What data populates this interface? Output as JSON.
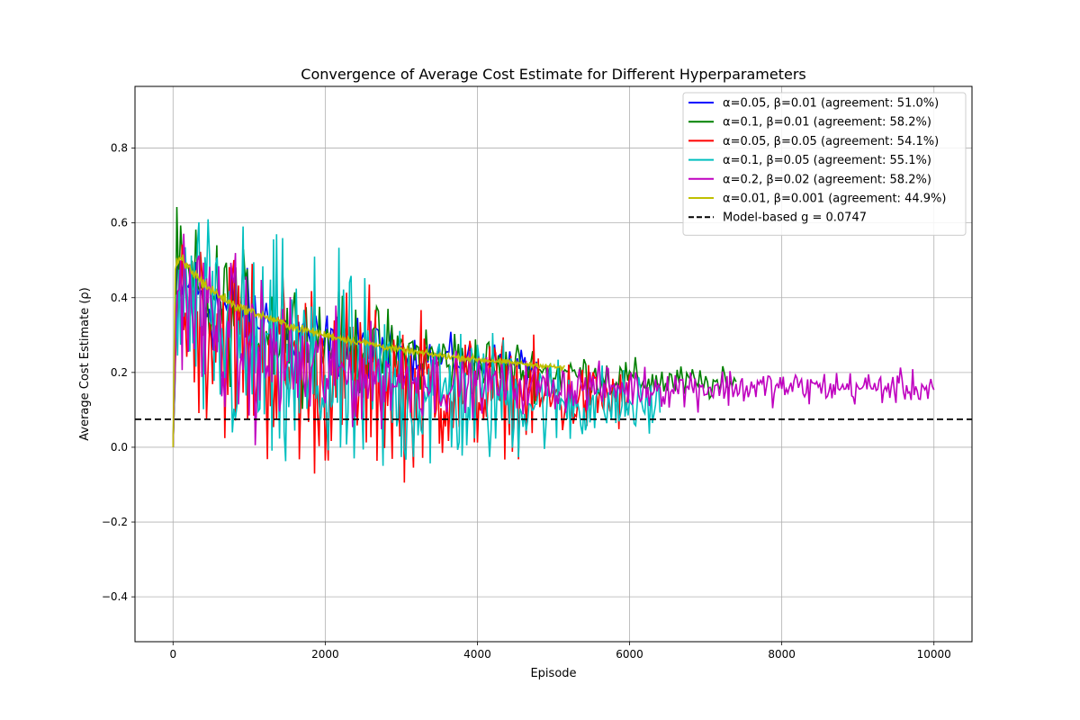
{
  "chart_data": {
    "type": "line",
    "title": "Convergence of Average Cost Estimate for Different Hyperparameters",
    "xlabel": "Episode",
    "ylabel": "Average Cost Estimate (ρ)",
    "xlim": [
      -500,
      10500
    ],
    "ylim": [
      -0.52,
      0.965
    ],
    "xticks": [
      0,
      2000,
      4000,
      6000,
      8000,
      10000
    ],
    "xtick_labels": [
      "0",
      "2000",
      "4000",
      "6000",
      "8000",
      "10000"
    ],
    "yticks": [
      -0.4,
      -0.2,
      0.0,
      0.2,
      0.4,
      0.6,
      0.8
    ],
    "ytick_labels": [
      "−0.4",
      "−0.2",
      "0.0",
      "0.2",
      "0.4",
      "0.6",
      "0.8"
    ],
    "grid": true,
    "legend_position": "upper right",
    "series": [
      {
        "name": "α=0.05, β=0.01 (agreement: 51.0%)",
        "color": "#0000ff",
        "x": [
          0,
          50,
          200,
          500,
          800,
          1200,
          1600,
          2000,
          2500,
          3000,
          3500,
          4000,
          4400,
          4800
        ],
        "y": [
          0.0,
          0.45,
          0.42,
          0.38,
          0.36,
          0.33,
          0.3,
          0.28,
          0.26,
          0.25,
          0.24,
          0.23,
          0.22,
          0.21
        ],
        "noise": [
          0,
          0.1,
          0.12,
          0.12,
          0.12,
          0.1,
          0.09,
          0.08,
          0.07,
          0.06,
          0.05,
          0.05,
          0.05,
          0.04
        ],
        "step": 25
      },
      {
        "name": "α=0.1, β=0.01 (agreement: 58.2%)",
        "color": "#008000",
        "x": [
          0,
          50,
          200,
          500,
          1000,
          2000,
          3000,
          4000,
          5000,
          6000,
          7000,
          7400
        ],
        "y": [
          0.0,
          0.45,
          0.42,
          0.38,
          0.34,
          0.28,
          0.25,
          0.22,
          0.2,
          0.18,
          0.17,
          0.16
        ],
        "noise": [
          0,
          0.15,
          0.16,
          0.16,
          0.15,
          0.12,
          0.1,
          0.08,
          0.06,
          0.05,
          0.04,
          0.04
        ],
        "step": 25
      },
      {
        "name": "α=0.05, β=0.05 (agreement: 54.1%)",
        "color": "#ff0000",
        "x": [
          0,
          50,
          200,
          500,
          1000,
          1500,
          2000,
          2500,
          3000,
          3500,
          4000,
          4500,
          5000,
          5500,
          6000
        ],
        "y": [
          0.0,
          0.42,
          0.38,
          0.32,
          0.26,
          0.22,
          0.2,
          0.18,
          0.16,
          0.15,
          0.15,
          0.14,
          0.13,
          0.13,
          0.13
        ],
        "noise": [
          0,
          0.18,
          0.22,
          0.24,
          0.25,
          0.25,
          0.24,
          0.22,
          0.2,
          0.17,
          0.15,
          0.13,
          0.11,
          0.09,
          0.08
        ],
        "step": 20
      },
      {
        "name": "α=0.1, β=0.05 (agreement: 55.1%)",
        "color": "#00bfbf",
        "x": [
          0,
          50,
          200,
          500,
          1000,
          1500,
          2000,
          2500,
          3000,
          3500,
          4000,
          4500,
          5000,
          5500,
          6000,
          6400
        ],
        "y": [
          0.0,
          0.4,
          0.36,
          0.3,
          0.24,
          0.2,
          0.18,
          0.16,
          0.15,
          0.14,
          0.13,
          0.13,
          0.12,
          0.12,
          0.11,
          0.11
        ],
        "noise": [
          0,
          0.2,
          0.25,
          0.28,
          0.3,
          0.3,
          0.28,
          0.25,
          0.22,
          0.2,
          0.17,
          0.15,
          0.12,
          0.1,
          0.08,
          0.07
        ],
        "step": 20
      },
      {
        "name": "α=0.2, β=0.02 (agreement: 58.2%)",
        "color": "#bf00bf",
        "x": [
          0,
          50,
          200,
          500,
          1000,
          1500,
          2000,
          3000,
          4000,
          5000,
          6000,
          7000,
          8000,
          9000,
          10000
        ],
        "y": [
          0.0,
          0.45,
          0.4,
          0.33,
          0.26,
          0.22,
          0.2,
          0.18,
          0.17,
          0.16,
          0.16,
          0.16,
          0.16,
          0.16,
          0.16
        ],
        "noise": [
          0,
          0.15,
          0.18,
          0.2,
          0.2,
          0.17,
          0.14,
          0.1,
          0.07,
          0.06,
          0.05,
          0.05,
          0.04,
          0.04,
          0.04
        ],
        "step": 20
      },
      {
        "name": "α=0.01, β=0.001 (agreement: 44.9%)",
        "color": "#bfbf00",
        "x": [
          0,
          30,
          100,
          300,
          500,
          800,
          1200,
          1600,
          2000,
          2500,
          3000,
          3500,
          4000,
          4500,
          5000,
          5150
        ],
        "y": [
          0.0,
          0.48,
          0.5,
          0.46,
          0.42,
          0.38,
          0.35,
          0.32,
          0.3,
          0.28,
          0.26,
          0.245,
          0.235,
          0.225,
          0.215,
          0.212
        ],
        "noise": [
          0,
          0.02,
          0.02,
          0.015,
          0.015,
          0.012,
          0.01,
          0.01,
          0.01,
          0.01,
          0.008,
          0.008,
          0.008,
          0.006,
          0.006,
          0.006
        ],
        "step": 10
      }
    ],
    "hline": {
      "name": "Model-based g = 0.0747",
      "y": 0.0747,
      "color": "#000000",
      "style": "dashed"
    }
  }
}
